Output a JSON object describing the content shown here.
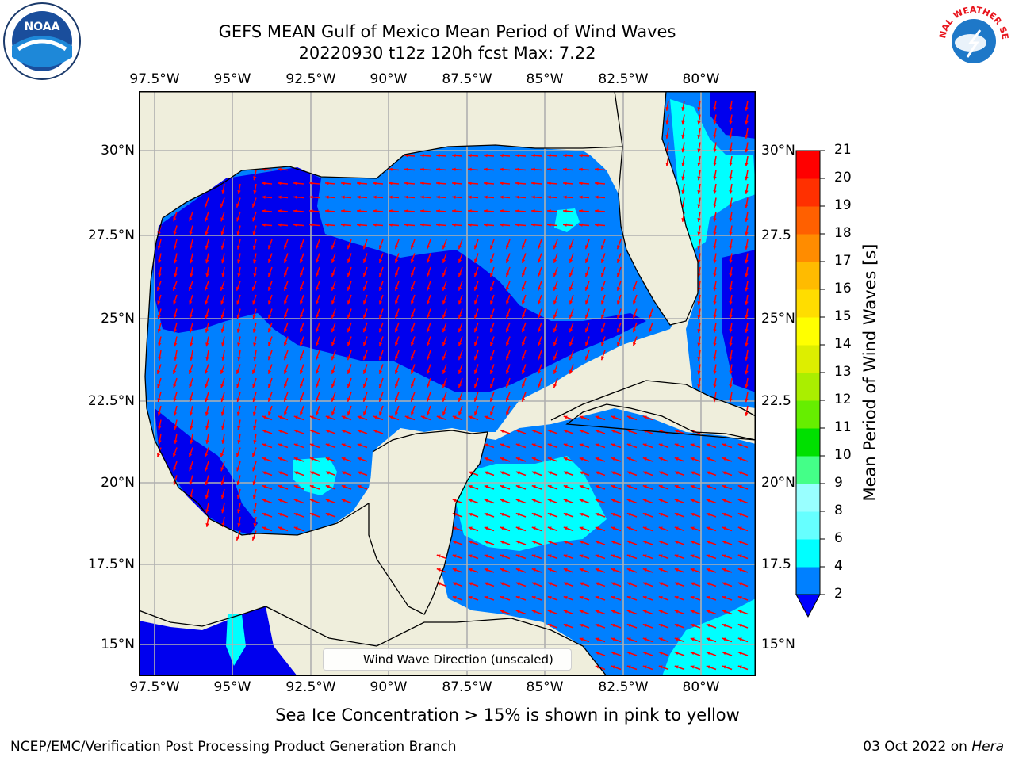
{
  "title": {
    "line1": "GEFS MEAN Gulf of Mexico Mean Period of Wind Waves",
    "line2": "20220930 t12z 120h fcst   Max: 7.22"
  },
  "longitude_labels": [
    "97.5°W",
    "95°W",
    "92.5°W",
    "90°W",
    "87.5°W",
    "85°W",
    "82.5°W",
    "80°W"
  ],
  "latitude_labels": [
    "30°N",
    "27.5°N",
    "25°N",
    "22.5°N",
    "20°N",
    "17.5°N",
    "15°N"
  ],
  "latitude_labels_right": [
    "30°N",
    "27.5",
    "25°N",
    "22.5",
    "20°N",
    "17.5",
    "15°N"
  ],
  "colorbar": {
    "label": "Mean Period of Wind Waves [s]",
    "ticks": [
      "2",
      "4",
      "6",
      "8",
      "9",
      "10",
      "11",
      "12",
      "13",
      "14",
      "15",
      "16",
      "17",
      "18",
      "19",
      "20",
      "21"
    ],
    "colors": [
      "#0000ff",
      "#0080ff",
      "#00ffff",
      "#66ffff",
      "#99ffff",
      "#44ff88",
      "#00e000",
      "#66ee00",
      "#aaee00",
      "#ddee00",
      "#ffff00",
      "#ffdd00",
      "#ffbb00",
      "#ff8c00",
      "#ff6000",
      "#ff3000",
      "#ff0000"
    ]
  },
  "legend": {
    "label": "Wind Wave Direction (unscaled)"
  },
  "note": "Sea Ice Concentration > 15% is shown in pink to yellow",
  "footer": {
    "left": "NCEP/EMC/Verification Post Processing Product Generation Branch",
    "right_date": "03 Oct 2022 on ",
    "right_host": "Hera"
  },
  "logos": {
    "noaa_text": "NOAA",
    "nws_text": "NATIONAL WEATHER SERVICE"
  },
  "map_colors": {
    "land": "#efeedc",
    "ocean_low": "#0000ee",
    "ocean_mid": "#0080ff",
    "ocean_high": "#00ffff",
    "arrows": "#ff0000",
    "grid": "#b0b0b0"
  }
}
